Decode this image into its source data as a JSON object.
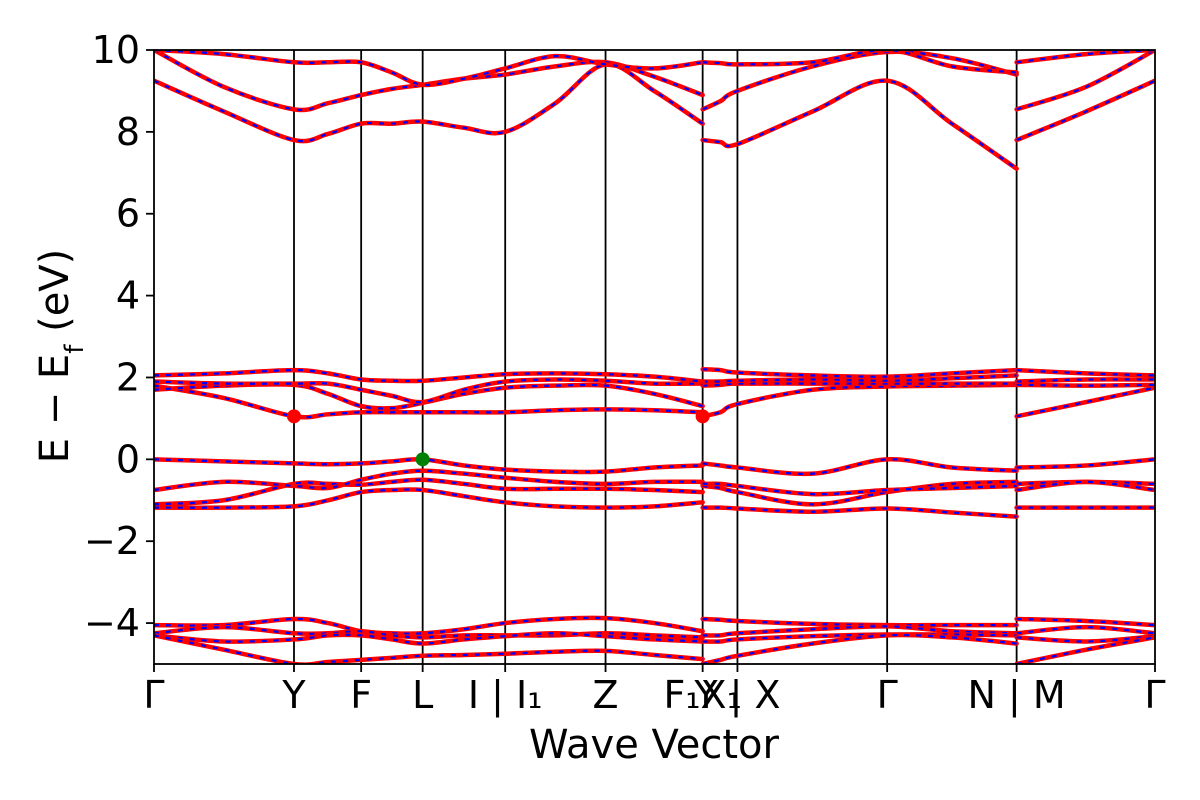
{
  "chart_data": {
    "type": "line",
    "title": "",
    "xlabel": "Wave Vector",
    "ylabel": "E − E_f (eV)",
    "ylabel_parts": {
      "main": "E − E",
      "sub": "f",
      "unit": " (eV)"
    },
    "ylim": [
      -5,
      10
    ],
    "yticks": [
      -4,
      -2,
      0,
      2,
      4,
      6,
      8,
      10
    ],
    "ytick_labels": [
      "−4",
      "−2",
      "0",
      "2",
      "4",
      "6",
      "8",
      "10"
    ],
    "grid": false,
    "xlim": [
      0,
      12.37
    ],
    "kpoint_labels": [
      {
        "x": 0.0,
        "label": "Γ"
      },
      {
        "x": 1.73,
        "label": "Y"
      },
      {
        "x": 2.56,
        "label": "F"
      },
      {
        "x": 3.32,
        "label": "L"
      },
      {
        "x": 4.34,
        "label": "I | I₁"
      },
      {
        "x": 5.58,
        "label": "Z"
      },
      {
        "x": 6.78,
        "label": "F₁X₁"
      },
      {
        "x": 7.21,
        "label": "Y | X"
      },
      {
        "x": 9.06,
        "label": "Γ"
      },
      {
        "x": 10.66,
        "label": "N | M"
      },
      {
        "x": 12.37,
        "label": "Γ"
      }
    ],
    "series_style": {
      "primary_color": "#ff0000",
      "overlay_color": "#0000ff",
      "dashed_overlay": true
    },
    "bands": [
      {
        "x": [
          0,
          0.86,
          1.73,
          2.15,
          2.56,
          2.94,
          3.32,
          3.83,
          4.34,
          4.96,
          5.58,
          6.18,
          6.78
        ],
        "y": [
          -1.18,
          -1.18,
          -1.15,
          -1.0,
          -0.8,
          -0.75,
          -0.75,
          -0.9,
          -1.05,
          -1.15,
          -1.18,
          -1.15,
          -1.05
        ]
      },
      {
        "x": [
          6.78,
          7.0,
          7.21,
          8.14,
          9.06,
          9.86,
          10.66
        ],
        "y": [
          -1.18,
          -1.18,
          -1.2,
          -1.28,
          -1.2,
          -1.3,
          -1.4
        ]
      },
      {
        "x": [
          10.66,
          11.52,
          12.37
        ],
        "y": [
          -1.18,
          -1.18,
          -1.18
        ]
      },
      {
        "x": [
          0,
          0.86,
          1.73,
          2.15,
          2.56,
          2.94,
          3.32,
          3.83,
          4.34,
          4.96,
          5.58,
          6.18,
          6.78
        ],
        "y": [
          -1.1,
          -1.0,
          -0.6,
          -0.6,
          -0.62,
          -0.55,
          -0.5,
          -0.6,
          -0.72,
          -0.72,
          -0.72,
          -0.75,
          -0.8
        ]
      },
      {
        "x": [
          6.78,
          7.0,
          7.21,
          8.14,
          9.06,
          9.86,
          10.66
        ],
        "y": [
          -0.65,
          -0.7,
          -0.8,
          -1.1,
          -0.8,
          -0.6,
          -0.55
        ]
      },
      {
        "x": [
          10.66,
          11.52,
          12.37
        ],
        "y": [
          -0.6,
          -0.55,
          -0.6
        ]
      },
      {
        "x": [
          0,
          0.86,
          1.73,
          2.15,
          2.56,
          2.94,
          3.32,
          3.83,
          4.34,
          4.96,
          5.58,
          6.18,
          6.78
        ],
        "y": [
          -0.75,
          -0.55,
          -0.65,
          -0.7,
          -0.5,
          -0.35,
          -0.28,
          -0.35,
          -0.45,
          -0.55,
          -0.6,
          -0.55,
          -0.55
        ]
      },
      {
        "x": [
          6.78,
          7.0,
          7.21,
          8.14,
          9.06,
          9.86,
          10.66
        ],
        "y": [
          -0.6,
          -0.6,
          -0.65,
          -0.85,
          -0.75,
          -0.7,
          -0.65
        ]
      },
      {
        "x": [
          10.66,
          11.52,
          12.37
        ],
        "y": [
          -0.75,
          -0.55,
          -0.75
        ]
      },
      {
        "x": [
          0,
          0.86,
          1.73,
          2.15,
          2.56,
          2.94,
          3.32,
          3.83,
          4.34,
          4.96,
          5.58,
          6.18,
          6.78
        ],
        "y": [
          0.0,
          -0.05,
          -0.1,
          -0.12,
          -0.1,
          -0.05,
          0.0,
          -0.15,
          -0.25,
          -0.3,
          -0.3,
          -0.2,
          -0.15
        ]
      },
      {
        "x": [
          6.78,
          7.0,
          7.21,
          8.14,
          9.06,
          9.86,
          10.66
        ],
        "y": [
          -0.1,
          -0.15,
          -0.2,
          -0.35,
          0.0,
          -0.2,
          -0.28
        ]
      },
      {
        "x": [
          10.66,
          11.52,
          12.37
        ],
        "y": [
          -0.2,
          -0.15,
          0.0
        ]
      },
      {
        "x": [
          0,
          0.86,
          1.73,
          2.15,
          2.56,
          2.94,
          3.32,
          3.83,
          4.34,
          4.96,
          5.58,
          6.18,
          6.78
        ],
        "y": [
          1.8,
          1.5,
          1.05,
          1.1,
          1.15,
          1.15,
          1.15,
          1.15,
          1.15,
          1.2,
          1.22,
          1.2,
          1.15
        ]
      },
      {
        "x": [
          6.78,
          7.0,
          7.21,
          8.14,
          9.06,
          9.86,
          10.66
        ],
        "y": [
          1.05,
          1.15,
          1.35,
          1.7,
          1.78,
          1.8,
          1.82
        ]
      },
      {
        "x": [
          10.66,
          11.52,
          12.37
        ],
        "y": [
          1.05,
          1.4,
          1.75
        ]
      },
      {
        "x": [
          0,
          0.86,
          1.73,
          2.15,
          2.56,
          2.94,
          3.32,
          3.83,
          4.34,
          4.96,
          5.58,
          6.18,
          6.78
        ],
        "y": [
          1.7,
          1.8,
          1.82,
          1.6,
          1.3,
          1.25,
          1.38,
          1.6,
          1.75,
          1.8,
          1.8,
          1.6,
          1.3
        ]
      },
      {
        "x": [
          6.78,
          7.0,
          7.21,
          8.14,
          9.06,
          9.86,
          10.66
        ],
        "y": [
          1.8,
          1.82,
          1.85,
          1.85,
          1.85,
          1.85,
          1.85
        ]
      },
      {
        "x": [
          10.66,
          11.52,
          12.37
        ],
        "y": [
          1.82,
          1.8,
          1.82
        ]
      },
      {
        "x": [
          0,
          0.86,
          1.73,
          2.15,
          2.56,
          2.94,
          3.32,
          3.83,
          4.34,
          4.96,
          5.58,
          6.18,
          6.78
        ],
        "y": [
          1.9,
          1.85,
          1.85,
          1.85,
          1.7,
          1.55,
          1.4,
          1.7,
          1.9,
          1.95,
          1.92,
          1.85,
          1.85
        ]
      },
      {
        "x": [
          6.78,
          7.0,
          7.21,
          8.14,
          9.06,
          9.86,
          10.66
        ],
        "y": [
          1.9,
          1.9,
          1.92,
          1.95,
          1.92,
          1.98,
          2.05
        ]
      },
      {
        "x": [
          10.66,
          11.52,
          12.37
        ],
        "y": [
          1.9,
          1.95,
          1.95
        ]
      },
      {
        "x": [
          0,
          0.86,
          1.73,
          2.15,
          2.56,
          2.94,
          3.32,
          3.83,
          4.34,
          4.96,
          5.58,
          6.18,
          6.78
        ],
        "y": [
          2.05,
          2.1,
          2.18,
          2.1,
          1.95,
          1.92,
          1.92,
          2.0,
          2.08,
          2.1,
          2.08,
          2.02,
          1.9
        ]
      },
      {
        "x": [
          6.78,
          7.0,
          7.21,
          8.14,
          9.06,
          9.86,
          10.66
        ],
        "y": [
          2.2,
          2.18,
          2.12,
          2.05,
          2.02,
          2.1,
          2.18
        ]
      },
      {
        "x": [
          10.66,
          11.52,
          12.37
        ],
        "y": [
          2.18,
          2.1,
          2.05
        ]
      },
      {
        "x": [
          0,
          0.86,
          1.73,
          2.15,
          2.56,
          2.94,
          3.32,
          3.83,
          4.34,
          4.96,
          5.58,
          6.18,
          6.78
        ],
        "y": [
          -4.05,
          -4.05,
          -3.9,
          -4.0,
          -4.2,
          -4.25,
          -4.25,
          -4.15,
          -4.0,
          -3.9,
          -3.88,
          -4.0,
          -4.2
        ]
      },
      {
        "x": [
          6.78,
          7.0,
          7.21,
          8.14,
          9.06,
          9.86,
          10.66
        ],
        "y": [
          -3.9,
          -3.92,
          -3.95,
          -4.02,
          -4.05,
          -4.05,
          -4.05
        ]
      },
      {
        "x": [
          10.66,
          11.52,
          12.37
        ],
        "y": [
          -3.9,
          -3.95,
          -4.05
        ]
      },
      {
        "x": [
          0,
          0.86,
          1.73,
          2.15,
          2.56,
          2.94,
          3.32,
          3.83,
          4.34,
          4.96,
          5.58,
          6.18,
          6.78
        ],
        "y": [
          -4.25,
          -4.1,
          -4.25,
          -4.25,
          -4.2,
          -4.3,
          -4.35,
          -4.3,
          -4.3,
          -4.3,
          -4.25,
          -4.3,
          -4.35
        ]
      },
      {
        "x": [
          6.78,
          7.0,
          7.21,
          8.14,
          9.06,
          9.86,
          10.66
        ],
        "y": [
          -4.3,
          -4.3,
          -4.25,
          -4.15,
          -4.08,
          -4.2,
          -4.25
        ]
      },
      {
        "x": [
          10.66,
          11.52,
          12.37
        ],
        "y": [
          -4.25,
          -4.1,
          -4.25
        ]
      },
      {
        "x": [
          0,
          0.86,
          1.73,
          2.15,
          2.56,
          2.94,
          3.32,
          3.83,
          4.34,
          4.96,
          5.58,
          6.18,
          6.78
        ],
        "y": [
          -4.3,
          -4.45,
          -4.4,
          -4.3,
          -4.3,
          -4.4,
          -4.5,
          -4.4,
          -4.32,
          -4.25,
          -4.32,
          -4.4,
          -4.45
        ]
      },
      {
        "x": [
          6.78,
          7.0,
          7.21,
          8.14,
          9.06,
          9.86,
          10.66
        ],
        "y": [
          -4.45,
          -4.45,
          -4.4,
          -4.32,
          -4.28,
          -4.28,
          -4.3
        ]
      },
      {
        "x": [
          10.66,
          11.52,
          12.37
        ],
        "y": [
          -4.35,
          -4.45,
          -4.32
        ]
      },
      {
        "x": [
          0,
          0.86,
          1.73,
          2.15,
          2.56,
          2.94,
          3.32,
          3.83,
          4.34,
          4.96,
          5.58,
          6.18,
          6.78
        ],
        "y": [
          -4.3,
          -4.65,
          -5.0,
          -4.95,
          -4.9,
          -4.85,
          -4.8,
          -4.78,
          -4.75,
          -4.7,
          -4.68,
          -4.78,
          -4.88
        ]
      },
      {
        "x": [
          6.78,
          7.0,
          7.21,
          8.14,
          9.06,
          9.86,
          10.66
        ],
        "y": [
          -5.0,
          -4.9,
          -4.8,
          -4.5,
          -4.3,
          -4.35,
          -4.5
        ]
      },
      {
        "x": [
          10.66,
          11.52,
          12.37
        ],
        "y": [
          -5.0,
          -4.65,
          -4.35
        ]
      },
      {
        "x": [
          0,
          0.86,
          1.73,
          2.15,
          2.56,
          2.94,
          3.32,
          3.83,
          4.34,
          4.96,
          5.58,
          6.18,
          6.78
        ],
        "y": [
          9.25,
          8.5,
          7.8,
          7.95,
          8.2,
          8.2,
          8.25,
          8.1,
          8.0,
          8.7,
          9.65,
          9.0,
          8.2
        ]
      },
      {
        "x": [
          6.78,
          7.0,
          7.21,
          8.14,
          9.06,
          9.86,
          10.66
        ],
        "y": [
          7.8,
          7.75,
          7.7,
          8.5,
          9.25,
          8.2,
          7.1
        ]
      },
      {
        "x": [
          10.66,
          11.52,
          12.37
        ],
        "y": [
          7.8,
          8.5,
          9.25
        ]
      },
      {
        "x": [
          0,
          0.86,
          1.73,
          2.15,
          2.56,
          2.94,
          3.32,
          3.83,
          4.34,
          4.96,
          5.58,
          6.18,
          6.78
        ],
        "y": [
          10.0,
          9.1,
          8.55,
          8.7,
          8.9,
          9.05,
          9.15,
          9.3,
          9.4,
          9.6,
          9.7,
          9.35,
          8.9
        ]
      },
      {
        "x": [
          6.78,
          7.0,
          7.21,
          8.14,
          9.06,
          9.86,
          10.66
        ],
        "y": [
          8.55,
          8.75,
          9.0,
          9.6,
          9.95,
          9.8,
          9.4
        ]
      },
      {
        "x": [
          10.66,
          11.52,
          12.37
        ],
        "y": [
          8.55,
          9.1,
          10.0
        ]
      },
      {
        "x": [
          0,
          0.86,
          1.73,
          2.15,
          2.56,
          2.94,
          3.32,
          3.83,
          4.34,
          4.96,
          5.58,
          6.18,
          6.78
        ],
        "y": [
          10.0,
          9.9,
          9.7,
          9.7,
          9.7,
          9.45,
          9.15,
          9.3,
          9.55,
          9.85,
          9.65,
          9.55,
          9.7
        ]
      },
      {
        "x": [
          6.78,
          7.0,
          7.21,
          8.14,
          9.06,
          9.86,
          10.66
        ],
        "y": [
          9.7,
          9.68,
          9.65,
          9.7,
          10.0,
          9.6,
          9.45
        ]
      },
      {
        "x": [
          10.66,
          11.52,
          12.37
        ],
        "y": [
          9.7,
          9.9,
          10.0
        ]
      }
    ],
    "markers": [
      {
        "x": 1.73,
        "y": 1.05,
        "color": "#ff0000",
        "meaning": "CBM"
      },
      {
        "x": 6.78,
        "y": 1.05,
        "color": "#ff0000",
        "meaning": "CBM"
      },
      {
        "x": 3.32,
        "y": 0.0,
        "color": "#008000",
        "meaning": "VBM"
      }
    ]
  }
}
